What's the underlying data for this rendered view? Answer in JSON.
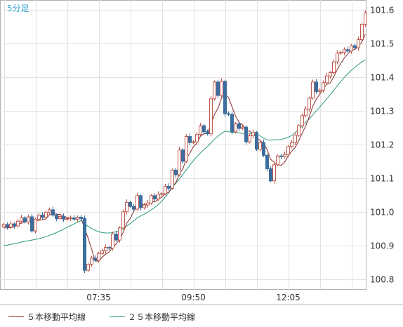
{
  "chart_data": {
    "type": "candlestick",
    "title": "5分足",
    "xlabel": "",
    "ylabel": "",
    "ylim": [
      100.77,
      101.63
    ],
    "y_ticks": [
      100.8,
      100.9,
      101.0,
      101.1,
      101.2,
      101.3,
      101.4,
      101.5,
      101.6
    ],
    "y_tick_labels": [
      "100.8",
      "100.9",
      "101.0",
      "101.1",
      "101.2",
      "101.3",
      "101.4",
      "101.5",
      "101.6"
    ],
    "x_tick_labels": [
      "07:35",
      "09:50",
      "12:05"
    ],
    "x_tick_index": [
      27,
      54,
      81
    ],
    "candle_count": 104,
    "grid": true,
    "legend_position": "bottom-left",
    "up_color": "#c05a50",
    "down_color": "#3b6e9e",
    "ma5_color": "#8a2a2a",
    "ma25_color": "#2b9a7c",
    "closes": [
      100.962,
      100.955,
      100.964,
      100.958,
      100.972,
      100.982,
      100.97,
      100.985,
      100.943,
      100.978,
      100.99,
      100.983,
      100.998,
      101.006,
      100.99,
      100.98,
      100.986,
      100.978,
      100.98,
      100.982,
      100.978,
      100.984,
      100.98,
      100.826,
      100.844,
      100.862,
      100.856,
      100.876,
      100.884,
      100.894,
      100.892,
      100.934,
      100.916,
      100.952,
      101.0,
      101.028,
      101.016,
      101.008,
      101.048,
      101.012,
      101.02,
      101.026,
      101.048,
      101.038,
      101.052,
      101.054,
      101.076,
      101.07,
      101.124,
      101.11,
      101.184,
      101.15,
      101.224,
      101.206,
      101.208,
      101.23,
      101.256,
      101.238,
      101.232,
      101.336,
      101.386,
      101.346,
      101.388,
      101.292,
      101.29,
      101.238,
      101.262,
      101.248,
      101.252,
      101.208,
      101.226,
      101.236,
      101.186,
      101.206,
      101.168,
      101.128,
      101.092,
      101.14,
      101.166,
      101.164,
      101.17,
      101.194,
      101.206,
      101.228,
      101.256,
      101.286,
      101.306,
      101.338,
      101.386,
      101.358,
      101.362,
      101.384,
      101.404,
      101.414,
      101.446,
      101.472,
      101.474,
      101.482,
      101.478,
      101.494,
      101.488,
      101.512,
      101.558,
      101.592
    ],
    "ma5": [
      100.952,
      100.952,
      100.953,
      100.955,
      100.962,
      100.966,
      100.97,
      100.973,
      100.97,
      100.972,
      100.975,
      100.976,
      100.979,
      100.991,
      100.995,
      100.993,
      100.992,
      100.988,
      100.983,
      100.981,
      100.981,
      100.981,
      100.981,
      100.95,
      100.922,
      100.889,
      100.854,
      100.853,
      100.865,
      100.874,
      100.88,
      100.896,
      100.904,
      100.918,
      100.939,
      100.966,
      100.98,
      101.001,
      101.02,
      101.022,
      101.021,
      101.023,
      101.031,
      101.029,
      101.037,
      101.044,
      101.054,
      101.058,
      101.075,
      101.087,
      101.113,
      101.128,
      101.158,
      101.175,
      101.194,
      101.204,
      101.225,
      101.232,
      101.234,
      101.26,
      101.29,
      101.308,
      101.338,
      101.35,
      101.34,
      101.312,
      101.285,
      101.266,
      101.258,
      101.242,
      101.239,
      101.234,
      101.222,
      101.212,
      101.204,
      101.185,
      101.156,
      101.147,
      101.14,
      101.138,
      101.148,
      101.167,
      101.18,
      101.192,
      101.211,
      101.234,
      101.256,
      101.283,
      101.314,
      101.335,
      101.35,
      101.366,
      101.379,
      101.384,
      101.402,
      101.424,
      101.442,
      101.458,
      101.47,
      101.48,
      101.483,
      101.491,
      101.506,
      101.529
    ],
    "ma25": [
      100.9,
      100.901,
      100.903,
      100.905,
      100.907,
      100.91,
      100.912,
      100.914,
      100.916,
      100.918,
      100.92,
      100.923,
      100.926,
      100.93,
      100.934,
      100.938,
      100.943,
      100.948,
      100.954,
      100.959,
      100.964,
      100.969,
      100.974,
      100.964,
      100.957,
      100.95,
      100.945,
      100.941,
      100.938,
      100.937,
      100.937,
      100.938,
      100.941,
      100.945,
      100.95,
      100.958,
      100.965,
      100.973,
      100.982,
      100.988,
      100.993,
      100.999,
      101.006,
      101.013,
      101.022,
      101.032,
      101.044,
      101.057,
      101.072,
      101.085,
      101.098,
      101.111,
      101.125,
      101.139,
      101.152,
      101.164,
      101.175,
      101.185,
      101.194,
      101.205,
      101.216,
      101.225,
      101.233,
      101.24,
      101.238,
      101.236,
      101.237,
      101.235,
      101.233,
      101.234,
      101.233,
      101.233,
      101.232,
      101.226,
      101.219,
      101.214,
      101.213,
      101.214,
      101.214,
      101.215,
      101.218,
      101.222,
      101.227,
      101.236,
      101.246,
      101.256,
      101.266,
      101.276,
      101.288,
      101.3,
      101.312,
      101.324,
      101.336,
      101.349,
      101.362,
      101.375,
      101.388,
      101.4,
      101.411,
      101.421,
      101.43,
      101.438,
      101.446,
      101.452
    ]
  },
  "legend": {
    "ma5_label": "５本移動平均線",
    "ma25_label": "２５本移動平均線"
  }
}
